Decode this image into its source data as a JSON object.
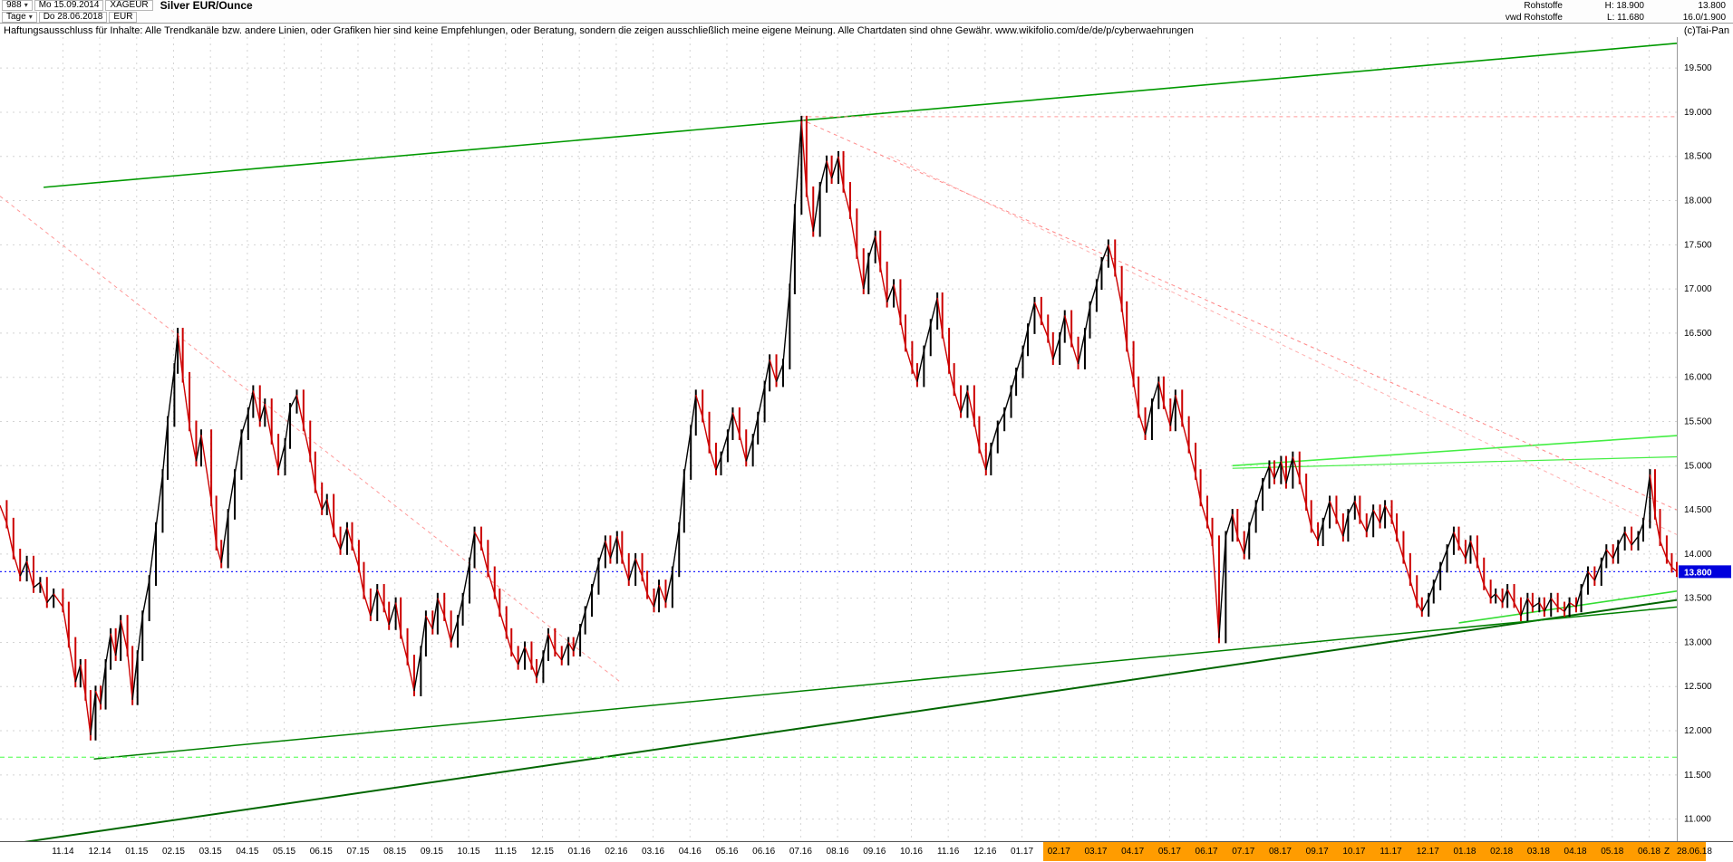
{
  "header": {
    "bars_count": "988",
    "start_date": "Mo 15.09.2014",
    "symbol": "XAGEUR",
    "title": "Silver EUR/Ounce",
    "period": "Tage",
    "end_date": "Do 28.06.2018",
    "currency": "EUR",
    "right": {
      "row1_label": "Rohstoffe",
      "high": "H: 18.900",
      "last": "13.800",
      "row2_label": "vwd Rohstoffe",
      "low": "L: 11.680",
      "extra": "16.0/1.900"
    }
  },
  "disclaimer": {
    "text": "Haftungsausschluss für Inhalte: Alle Trendkanäle bzw. andere Linien, oder Grafiken hier sind keine Empfehlungen, oder Beratung, sondern die zeigen ausschließlich meine eigene Meinung. Alle Chartdaten sind ohne Gewähr.  www.wikifolio.com/de/de/p/cyberwaehrungen",
    "copyright": "(c)Tai-Pan"
  },
  "chart_data": {
    "type": "line",
    "title": "Silver EUR/Ounce",
    "xlabel": "",
    "ylabel": "EUR",
    "ylim": [
      10.75,
      19.85
    ],
    "grid": true,
    "last_price": 13.8,
    "last_price_label": "13.800",
    "zoom_label": "Z",
    "end_label": "28.06.18",
    "x_axis_highlight_from": 0.622,
    "colors": {
      "up": "#000000",
      "down": "#cc0000",
      "grid": "#d4d4d4",
      "tag_bg": "#0000dd",
      "tag_text": "#ffffff",
      "axis_highlight": "#ff9c00"
    },
    "y_ticks": [
      {
        "label": "19.500",
        "v": 19.5
      },
      {
        "label": "19.000",
        "v": 19.0
      },
      {
        "label": "18.500",
        "v": 18.5
      },
      {
        "label": "18.000",
        "v": 18.0
      },
      {
        "label": "17.500",
        "v": 17.5
      },
      {
        "label": "17.000",
        "v": 17.0
      },
      {
        "label": "16.500",
        "v": 16.5
      },
      {
        "label": "16.000",
        "v": 16.0
      },
      {
        "label": "15.500",
        "v": 15.5
      },
      {
        "label": "15.000",
        "v": 15.0
      },
      {
        "label": "14.500",
        "v": 14.5
      },
      {
        "label": "14.000",
        "v": 14.0
      },
      {
        "label": "13.500",
        "v": 13.5
      },
      {
        "label": "13.000",
        "v": 13.0
      },
      {
        "label": "12.500",
        "v": 12.5
      },
      {
        "label": "12.000",
        "v": 12.0
      },
      {
        "label": "11.500",
        "v": 11.5
      },
      {
        "label": "11.000",
        "v": 11.0
      }
    ],
    "x_ticks": [
      {
        "label": "11.14",
        "f": 0.0375
      },
      {
        "label": "12.14",
        "f": 0.0595
      },
      {
        "label": "01.15",
        "f": 0.0815
      },
      {
        "label": "02.15",
        "f": 0.1035
      },
      {
        "label": "03.15",
        "f": 0.1255
      },
      {
        "label": "04.15",
        "f": 0.1475
      },
      {
        "label": "05.15",
        "f": 0.1695
      },
      {
        "label": "06.15",
        "f": 0.1915
      },
      {
        "label": "07.15",
        "f": 0.2135
      },
      {
        "label": "08.15",
        "f": 0.2355
      },
      {
        "label": "09.15",
        "f": 0.2575
      },
      {
        "label": "10.15",
        "f": 0.2795
      },
      {
        "label": "11.15",
        "f": 0.3015
      },
      {
        "label": "12.15",
        "f": 0.3235
      },
      {
        "label": "01.16",
        "f": 0.3455
      },
      {
        "label": "02.16",
        "f": 0.3675
      },
      {
        "label": "03.16",
        "f": 0.3895
      },
      {
        "label": "04.16",
        "f": 0.4115
      },
      {
        "label": "05.16",
        "f": 0.4335
      },
      {
        "label": "06.16",
        "f": 0.4555
      },
      {
        "label": "07.16",
        "f": 0.4775
      },
      {
        "label": "08.16",
        "f": 0.4995
      },
      {
        "label": "09.16",
        "f": 0.5215
      },
      {
        "label": "10.16",
        "f": 0.5435
      },
      {
        "label": "11.16",
        "f": 0.5655
      },
      {
        "label": "12.16",
        "f": 0.5875
      },
      {
        "label": "01.17",
        "f": 0.6095
      },
      {
        "label": "02.17",
        "f": 0.6315
      },
      {
        "label": "03.17",
        "f": 0.6535
      },
      {
        "label": "04.17",
        "f": 0.6755
      },
      {
        "label": "05.17",
        "f": 0.6975
      },
      {
        "label": "06.17",
        "f": 0.7195
      },
      {
        "label": "07.17",
        "f": 0.7415
      },
      {
        "label": "08.17",
        "f": 0.7635
      },
      {
        "label": "09.17",
        "f": 0.7855
      },
      {
        "label": "10.17",
        "f": 0.8075
      },
      {
        "label": "11.17",
        "f": 0.8295
      },
      {
        "label": "12.17",
        "f": 0.8515
      },
      {
        "label": "01.18",
        "f": 0.8735
      },
      {
        "label": "02.18",
        "f": 0.8955
      },
      {
        "label": "03.18",
        "f": 0.9175
      },
      {
        "label": "04.18",
        "f": 0.9395
      },
      {
        "label": "05.18",
        "f": 0.9615
      },
      {
        "label": "06.18",
        "f": 0.9835
      }
    ],
    "trend_lines": [
      {
        "f1": 0.026,
        "p1": 18.15,
        "f2": 1.0,
        "p2": 19.78,
        "color": "#009900",
        "w": 1.6
      },
      {
        "f1": 0.0,
        "p1": 10.7,
        "f2": 1.0,
        "p2": 13.48,
        "color": "#006600",
        "w": 2
      },
      {
        "f1": 0.056,
        "p1": 11.68,
        "f2": 1.0,
        "p2": 13.4,
        "color": "#008000",
        "w": 1.5
      },
      {
        "f1": 0.0,
        "p1": 11.7,
        "f2": 1.0,
        "p2": 11.7,
        "color": "#77ff77",
        "w": 1.3,
        "dash": "5 4"
      },
      {
        "f1": 0.735,
        "p1": 15.0,
        "f2": 1.0,
        "p2": 15.34,
        "color": "#44ee44",
        "w": 1.6
      },
      {
        "f1": 0.735,
        "p1": 14.97,
        "f2": 1.0,
        "p2": 15.1,
        "color": "#44ee44",
        "w": 1.2
      },
      {
        "f1": 0.87,
        "p1": 13.22,
        "f2": 1.0,
        "p2": 13.58,
        "color": "#33dd33",
        "w": 1.6
      },
      {
        "f1": 0.0,
        "p1": 18.05,
        "f2": 0.37,
        "p2": 12.55,
        "color": "#ff9999",
        "w": 1,
        "dash": "4 4"
      },
      {
        "f1": 0.4775,
        "p1": 18.92,
        "f2": 1.0,
        "p2": 14.5,
        "color": "#ff8888",
        "w": 1,
        "dash": "4 4"
      },
      {
        "f1": 0.531,
        "p1": 18.5,
        "f2": 1.0,
        "p2": 14.22,
        "color": "#ffb0b0",
        "w": 1,
        "dash": "4 4"
      },
      {
        "f1": 0.4775,
        "p1": 18.95,
        "f2": 1.0,
        "p2": 18.95,
        "color": "#ff9999",
        "w": 1,
        "dash": "4 4"
      },
      {
        "f1": 0.0,
        "p1": 13.8,
        "f2": 1.0,
        "p2": 13.8,
        "color": "#2222ff",
        "w": 1.2,
        "dash": "2 3"
      }
    ],
    "series": [
      [
        0.0,
        14.55
      ],
      [
        0.004,
        14.35
      ],
      [
        0.008,
        14.0
      ],
      [
        0.012,
        13.75
      ],
      [
        0.016,
        13.92
      ],
      [
        0.02,
        13.62
      ],
      [
        0.024,
        13.68
      ],
      [
        0.028,
        13.45
      ],
      [
        0.032,
        13.55
      ],
      [
        0.0375,
        13.4
      ],
      [
        0.041,
        13.0
      ],
      [
        0.045,
        12.55
      ],
      [
        0.048,
        12.75
      ],
      [
        0.051,
        12.4
      ],
      [
        0.054,
        11.95
      ],
      [
        0.057,
        12.45
      ],
      [
        0.06,
        12.3
      ],
      [
        0.063,
        12.75
      ],
      [
        0.066,
        13.1
      ],
      [
        0.069,
        12.85
      ],
      [
        0.072,
        13.25
      ],
      [
        0.076,
        12.9
      ],
      [
        0.079,
        12.35
      ],
      [
        0.082,
        12.85
      ],
      [
        0.085,
        13.3
      ],
      [
        0.089,
        13.7
      ],
      [
        0.093,
        14.3
      ],
      [
        0.097,
        14.9
      ],
      [
        0.1,
        15.5
      ],
      [
        0.104,
        16.1
      ],
      [
        0.106,
        16.5
      ],
      [
        0.109,
        16.0
      ],
      [
        0.113,
        15.45
      ],
      [
        0.117,
        15.05
      ],
      [
        0.12,
        15.35
      ],
      [
        0.126,
        14.6
      ],
      [
        0.129,
        14.1
      ],
      [
        0.132,
        13.9
      ],
      [
        0.136,
        14.45
      ],
      [
        0.14,
        14.9
      ],
      [
        0.144,
        15.35
      ],
      [
        0.148,
        15.6
      ],
      [
        0.151,
        15.85
      ],
      [
        0.155,
        15.5
      ],
      [
        0.158,
        15.7
      ],
      [
        0.162,
        15.3
      ],
      [
        0.166,
        14.95
      ],
      [
        0.17,
        15.25
      ],
      [
        0.173,
        15.65
      ],
      [
        0.177,
        15.8
      ],
      [
        0.181,
        15.45
      ],
      [
        0.185,
        15.1
      ],
      [
        0.188,
        14.75
      ],
      [
        0.192,
        14.5
      ],
      [
        0.195,
        14.62
      ],
      [
        0.199,
        14.25
      ],
      [
        0.203,
        14.05
      ],
      [
        0.207,
        14.3
      ],
      [
        0.21,
        14.1
      ],
      [
        0.214,
        13.85
      ],
      [
        0.217,
        13.55
      ],
      [
        0.221,
        13.3
      ],
      [
        0.225,
        13.6
      ],
      [
        0.229,
        13.4
      ],
      [
        0.232,
        13.2
      ],
      [
        0.236,
        13.45
      ],
      [
        0.239,
        13.1
      ],
      [
        0.243,
        12.8
      ],
      [
        0.247,
        12.45
      ],
      [
        0.251,
        12.9
      ],
      [
        0.254,
        13.3
      ],
      [
        0.258,
        13.15
      ],
      [
        0.261,
        13.5
      ],
      [
        0.265,
        13.3
      ],
      [
        0.269,
        13.0
      ],
      [
        0.273,
        13.25
      ],
      [
        0.276,
        13.5
      ],
      [
        0.28,
        13.9
      ],
      [
        0.283,
        14.25
      ],
      [
        0.287,
        14.1
      ],
      [
        0.291,
        13.8
      ],
      [
        0.295,
        13.55
      ],
      [
        0.298,
        13.35
      ],
      [
        0.302,
        13.1
      ],
      [
        0.305,
        12.9
      ],
      [
        0.309,
        12.75
      ],
      [
        0.313,
        12.95
      ],
      [
        0.317,
        12.75
      ],
      [
        0.32,
        12.6
      ],
      [
        0.324,
        12.85
      ],
      [
        0.327,
        13.1
      ],
      [
        0.331,
        12.9
      ],
      [
        0.335,
        12.8
      ],
      [
        0.339,
        13.0
      ],
      [
        0.342,
        12.9
      ],
      [
        0.346,
        13.15
      ],
      [
        0.349,
        13.35
      ],
      [
        0.353,
        13.6
      ],
      [
        0.357,
        13.9
      ],
      [
        0.361,
        14.15
      ],
      [
        0.364,
        13.95
      ],
      [
        0.368,
        14.2
      ],
      [
        0.371,
        13.95
      ],
      [
        0.375,
        13.7
      ],
      [
        0.379,
        13.95
      ],
      [
        0.383,
        13.75
      ],
      [
        0.386,
        13.55
      ],
      [
        0.39,
        13.4
      ],
      [
        0.393,
        13.65
      ],
      [
        0.397,
        13.45
      ],
      [
        0.401,
        13.8
      ],
      [
        0.405,
        14.3
      ],
      [
        0.408,
        14.9
      ],
      [
        0.412,
        15.4
      ],
      [
        0.415,
        15.8
      ],
      [
        0.419,
        15.55
      ],
      [
        0.423,
        15.2
      ],
      [
        0.427,
        14.95
      ],
      [
        0.43,
        15.1
      ],
      [
        0.434,
        15.35
      ],
      [
        0.437,
        15.6
      ],
      [
        0.441,
        15.35
      ],
      [
        0.445,
        15.05
      ],
      [
        0.449,
        15.3
      ],
      [
        0.452,
        15.55
      ],
      [
        0.456,
        15.9
      ],
      [
        0.459,
        16.2
      ],
      [
        0.463,
        15.95
      ],
      [
        0.467,
        16.15
      ],
      [
        0.471,
        17.0
      ],
      [
        0.474,
        17.9
      ],
      [
        0.478,
        18.9
      ],
      [
        0.481,
        18.1
      ],
      [
        0.485,
        17.65
      ],
      [
        0.489,
        18.15
      ],
      [
        0.493,
        18.45
      ],
      [
        0.496,
        18.25
      ],
      [
        0.5,
        18.5
      ],
      [
        0.503,
        18.15
      ],
      [
        0.507,
        17.85
      ],
      [
        0.511,
        17.4
      ],
      [
        0.515,
        17.0
      ],
      [
        0.518,
        17.35
      ],
      [
        0.522,
        17.6
      ],
      [
        0.525,
        17.25
      ],
      [
        0.529,
        16.85
      ],
      [
        0.533,
        17.05
      ],
      [
        0.537,
        16.65
      ],
      [
        0.54,
        16.35
      ],
      [
        0.544,
        16.1
      ],
      [
        0.547,
        15.95
      ],
      [
        0.551,
        16.3
      ],
      [
        0.555,
        16.6
      ],
      [
        0.559,
        16.9
      ],
      [
        0.562,
        16.5
      ],
      [
        0.566,
        16.1
      ],
      [
        0.569,
        15.85
      ],
      [
        0.573,
        15.6
      ],
      [
        0.577,
        15.85
      ],
      [
        0.581,
        15.5
      ],
      [
        0.584,
        15.2
      ],
      [
        0.588,
        14.95
      ],
      [
        0.591,
        15.2
      ],
      [
        0.595,
        15.45
      ],
      [
        0.599,
        15.6
      ],
      [
        0.603,
        15.85
      ],
      [
        0.606,
        16.05
      ],
      [
        0.61,
        16.3
      ],
      [
        0.613,
        16.55
      ],
      [
        0.617,
        16.85
      ],
      [
        0.621,
        16.65
      ],
      [
        0.625,
        16.45
      ],
      [
        0.628,
        16.2
      ],
      [
        0.632,
        16.45
      ],
      [
        0.635,
        16.7
      ],
      [
        0.639,
        16.4
      ],
      [
        0.643,
        16.15
      ],
      [
        0.647,
        16.5
      ],
      [
        0.65,
        16.8
      ],
      [
        0.654,
        17.05
      ],
      [
        0.657,
        17.3
      ],
      [
        0.661,
        17.5
      ],
      [
        0.665,
        17.2
      ],
      [
        0.669,
        16.8
      ],
      [
        0.672,
        16.35
      ],
      [
        0.676,
        15.95
      ],
      [
        0.679,
        15.6
      ],
      [
        0.683,
        15.35
      ],
      [
        0.687,
        15.7
      ],
      [
        0.691,
        15.95
      ],
      [
        0.694,
        15.7
      ],
      [
        0.698,
        15.45
      ],
      [
        0.701,
        15.8
      ],
      [
        0.705,
        15.5
      ],
      [
        0.709,
        15.2
      ],
      [
        0.713,
        14.9
      ],
      [
        0.716,
        14.6
      ],
      [
        0.72,
        14.35
      ],
      [
        0.723,
        14.15
      ],
      [
        0.727,
        13.05
      ],
      [
        0.731,
        14.2
      ],
      [
        0.735,
        14.45
      ],
      [
        0.738,
        14.2
      ],
      [
        0.742,
        14.0
      ],
      [
        0.745,
        14.3
      ],
      [
        0.749,
        14.55
      ],
      [
        0.753,
        14.8
      ],
      [
        0.757,
        15.0
      ],
      [
        0.76,
        14.85
      ],
      [
        0.764,
        15.05
      ],
      [
        0.767,
        14.8
      ],
      [
        0.771,
        15.1
      ],
      [
        0.775,
        14.85
      ],
      [
        0.779,
        14.55
      ],
      [
        0.782,
        14.3
      ],
      [
        0.786,
        14.15
      ],
      [
        0.789,
        14.35
      ],
      [
        0.793,
        14.6
      ],
      [
        0.797,
        14.4
      ],
      [
        0.801,
        14.2
      ],
      [
        0.804,
        14.45
      ],
      [
        0.808,
        14.6
      ],
      [
        0.811,
        14.4
      ],
      [
        0.815,
        14.25
      ],
      [
        0.819,
        14.5
      ],
      [
        0.823,
        14.35
      ],
      [
        0.826,
        14.55
      ],
      [
        0.83,
        14.4
      ],
      [
        0.833,
        14.2
      ],
      [
        0.837,
        13.95
      ],
      [
        0.841,
        13.7
      ],
      [
        0.845,
        13.45
      ],
      [
        0.848,
        13.35
      ],
      [
        0.852,
        13.5
      ],
      [
        0.855,
        13.65
      ],
      [
        0.859,
        13.85
      ],
      [
        0.863,
        14.05
      ],
      [
        0.867,
        14.25
      ],
      [
        0.87,
        14.1
      ],
      [
        0.874,
        13.95
      ],
      [
        0.877,
        14.15
      ],
      [
        0.881,
        13.9
      ],
      [
        0.885,
        13.65
      ],
      [
        0.889,
        13.5
      ],
      [
        0.892,
        13.55
      ],
      [
        0.896,
        13.45
      ],
      [
        0.899,
        13.6
      ],
      [
        0.903,
        13.45
      ],
      [
        0.907,
        13.3
      ],
      [
        0.911,
        13.5
      ],
      [
        0.914,
        13.4
      ],
      [
        0.918,
        13.45
      ],
      [
        0.921,
        13.35
      ],
      [
        0.925,
        13.5
      ],
      [
        0.929,
        13.4
      ],
      [
        0.933,
        13.35
      ],
      [
        0.936,
        13.45
      ],
      [
        0.94,
        13.4
      ],
      [
        0.943,
        13.6
      ],
      [
        0.947,
        13.8
      ],
      [
        0.951,
        13.7
      ],
      [
        0.955,
        13.9
      ],
      [
        0.958,
        14.05
      ],
      [
        0.962,
        13.95
      ],
      [
        0.965,
        14.1
      ],
      [
        0.969,
        14.25
      ],
      [
        0.973,
        14.1
      ],
      [
        0.977,
        14.2
      ],
      [
        0.98,
        14.35
      ],
      [
        0.984,
        14.9
      ],
      [
        0.987,
        14.45
      ],
      [
        0.99,
        14.15
      ],
      [
        0.994,
        13.95
      ],
      [
        0.997,
        13.85
      ],
      [
        1.0,
        13.8
      ]
    ]
  }
}
